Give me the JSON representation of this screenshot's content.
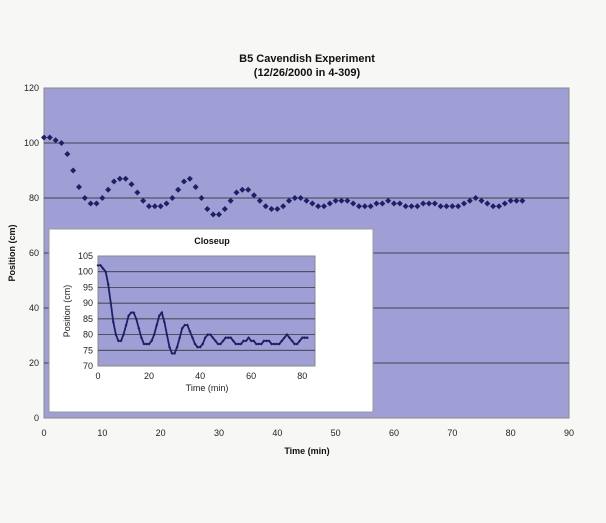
{
  "chart_data": [
    {
      "type": "scatter",
      "title": "B5 Cavendish Experiment",
      "subtitle": "(12/26/2000 in 4-309)",
      "xlabel": "Time (min)",
      "ylabel": "Position (cm)",
      "xlim": [
        0,
        90
      ],
      "ylim": [
        0,
        120
      ],
      "xticks": [
        0,
        10,
        20,
        30,
        40,
        50,
        60,
        70,
        80,
        90
      ],
      "yticks": [
        0,
        20,
        40,
        60,
        80,
        100,
        120
      ],
      "grid": "horizontal",
      "legend": "none",
      "marker": "diamond",
      "series": [
        {
          "x": [
            0,
            1,
            2,
            3,
            4,
            5,
            6,
            7,
            8,
            9,
            10,
            11,
            12,
            13,
            14,
            15,
            16,
            17,
            18,
            19,
            20,
            21,
            22,
            23,
            24,
            25,
            26,
            27,
            28,
            29,
            30,
            31,
            32,
            33,
            34,
            35,
            36,
            37,
            38,
            39,
            40,
            41,
            42,
            43,
            44,
            45,
            46,
            47,
            48,
            49,
            50,
            51,
            52,
            53,
            54,
            55,
            56,
            57,
            58,
            59,
            60,
            61,
            62,
            63,
            64,
            65,
            66,
            67,
            68,
            69,
            70,
            71,
            72,
            73,
            74,
            75,
            76,
            77,
            78,
            79,
            80,
            81,
            82
          ],
          "values": [
            102,
            102,
            101,
            100,
            96,
            90,
            84,
            80,
            78,
            78,
            80,
            83,
            86,
            87,
            87,
            85,
            82,
            79,
            77,
            77,
            77,
            78,
            80,
            83,
            86,
            87,
            84,
            80,
            76,
            74,
            74,
            76,
            79,
            82,
            83,
            83,
            81,
            79,
            77,
            76,
            76,
            77,
            79,
            80,
            80,
            79,
            78,
            77,
            77,
            78,
            79,
            79,
            79,
            78,
            77,
            77,
            77,
            78,
            78,
            79,
            78,
            78,
            77,
            77,
            77,
            78,
            78,
            78,
            77,
            77,
            77,
            77,
            78,
            79,
            80,
            79,
            78,
            77,
            77,
            78,
            79,
            79,
            79
          ]
        }
      ]
    },
    {
      "type": "line",
      "title": "Closeup",
      "xlabel": "Time (min)",
      "ylabel": "Position (cm)",
      "xlim": [
        0,
        85
      ],
      "ylim": [
        70,
        105
      ],
      "xticks": [
        0,
        20,
        40,
        60,
        80
      ],
      "yticks": [
        70,
        75,
        80,
        85,
        90,
        95,
        100,
        105
      ],
      "grid": "horizontal",
      "legend": "none",
      "series": [
        {
          "x": [
            0,
            1,
            2,
            3,
            4,
            5,
            6,
            7,
            8,
            9,
            10,
            11,
            12,
            13,
            14,
            15,
            16,
            17,
            18,
            19,
            20,
            21,
            22,
            23,
            24,
            25,
            26,
            27,
            28,
            29,
            30,
            31,
            32,
            33,
            34,
            35,
            36,
            37,
            38,
            39,
            40,
            41,
            42,
            43,
            44,
            45,
            46,
            47,
            48,
            49,
            50,
            51,
            52,
            53,
            54,
            55,
            56,
            57,
            58,
            59,
            60,
            61,
            62,
            63,
            64,
            65,
            66,
            67,
            68,
            69,
            70,
            71,
            72,
            73,
            74,
            75,
            76,
            77,
            78,
            79,
            80,
            81,
            82
          ],
          "values": [
            102,
            102,
            101,
            100,
            96,
            90,
            84,
            80,
            78,
            78,
            80,
            83,
            86,
            87,
            87,
            85,
            82,
            79,
            77,
            77,
            77,
            78,
            80,
            83,
            86,
            87,
            84,
            80,
            76,
            74,
            74,
            76,
            79,
            82,
            83,
            83,
            81,
            79,
            77,
            76,
            76,
            77,
            79,
            80,
            80,
            79,
            78,
            77,
            77,
            78,
            79,
            79,
            79,
            78,
            77,
            77,
            77,
            78,
            78,
            79,
            78,
            78,
            77,
            77,
            77,
            78,
            78,
            78,
            77,
            77,
            77,
            77,
            78,
            79,
            80,
            79,
            78,
            77,
            77,
            78,
            79,
            79,
            79
          ]
        }
      ]
    }
  ]
}
